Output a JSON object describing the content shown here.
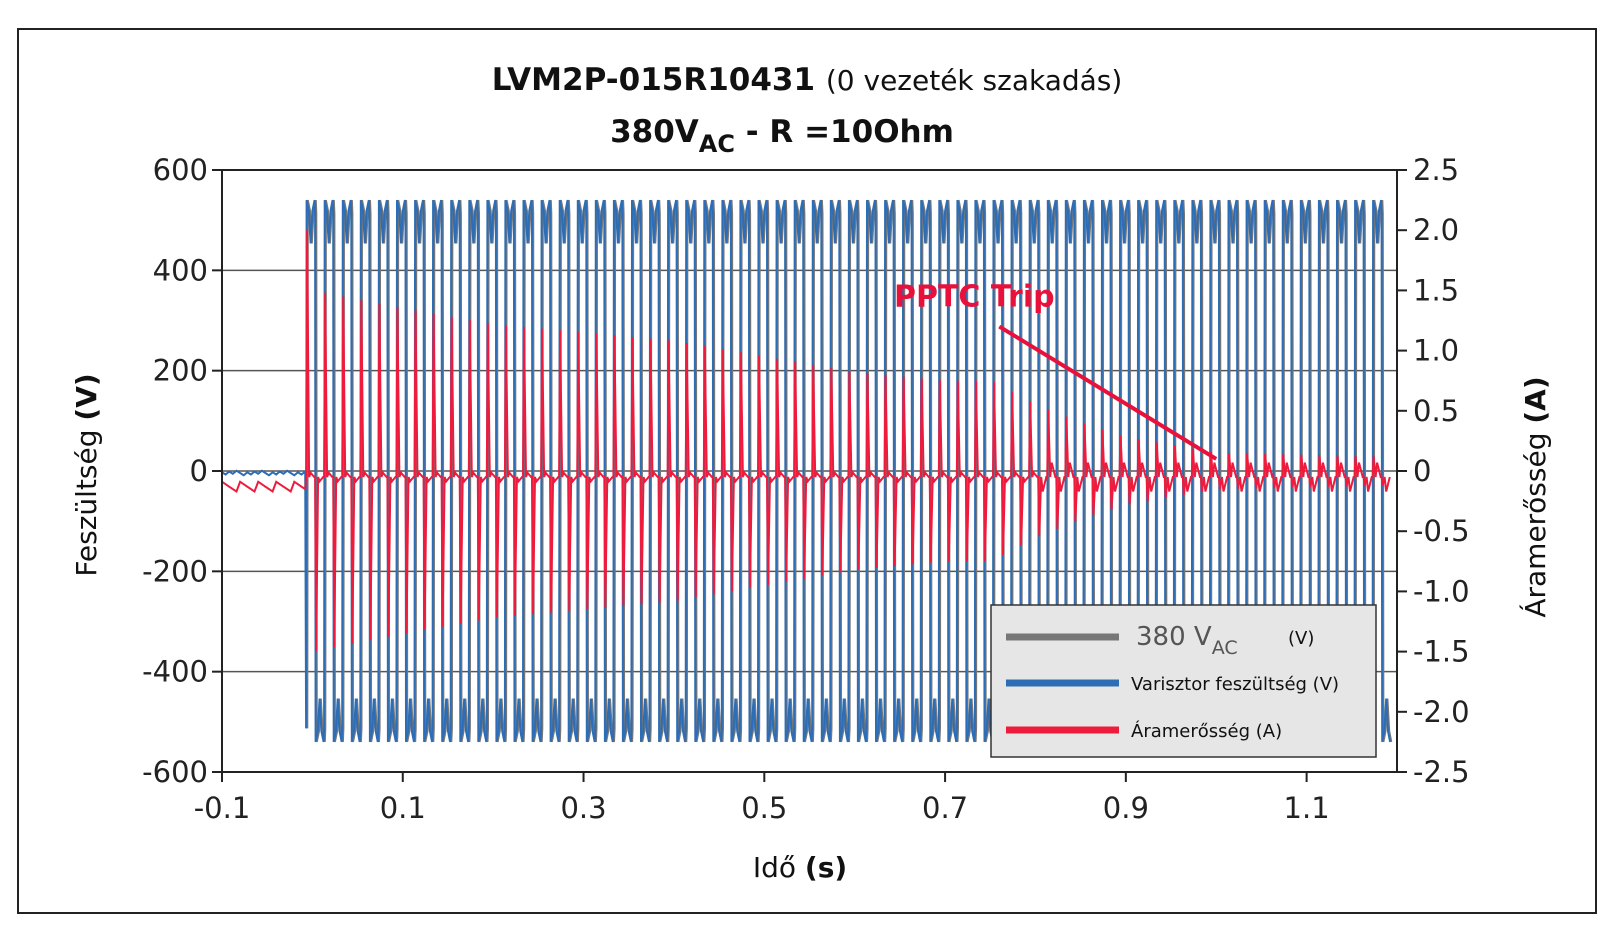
{
  "chart_data": {
    "type": "line",
    "title": "LVM2P-015R10431",
    "title_suffix": "(0 vezeték szakadás)",
    "subtitle": {
      "prefix": "380V",
      "subscript": "AC",
      "suffix": " - R =10Ohm"
    },
    "xlabel": {
      "text": "Idő ",
      "bold_part": "(s)"
    },
    "ylabel_left": {
      "text": "Feszültség ",
      "bold_part": "(V)"
    },
    "ylabel_right": {
      "text": "Áramerősség ",
      "bold_part": "(A)"
    },
    "xlim": [
      -0.1,
      1.2
    ],
    "ylim_left": [
      -600,
      600
    ],
    "ylim_right": [
      -2.5,
      2.5
    ],
    "x_ticks": [
      "-0.1",
      "0.1",
      "0.3",
      "0.5",
      "0.7",
      "0.9",
      "1.1"
    ],
    "x_tick_values": [
      -0.1,
      0.1,
      0.3,
      0.5,
      0.7,
      0.9,
      1.1
    ],
    "y_ticks_left": [
      "600",
      "400",
      "200",
      "0",
      "-200",
      "-400",
      "-600"
    ],
    "y_tick_values_left": [
      600,
      400,
      200,
      0,
      -200,
      -400,
      -600
    ],
    "y_ticks_right": [
      "2.5",
      "2.0",
      "1.5",
      "1.0",
      "0.5",
      "0",
      "-0.5",
      "-1.0",
      "-1.5",
      "-2.0",
      "-2.5"
    ],
    "y_tick_values_right": [
      2.5,
      2.0,
      1.5,
      1.0,
      0.5,
      0,
      -0.5,
      -1.0,
      -1.5,
      -2.0,
      -2.5
    ],
    "grid": "horizontal",
    "legend_position": "bottom-right",
    "series": [
      {
        "name": "380 V",
        "name_subscript": "AC",
        "unit": "(V)",
        "color": "#777777",
        "axis": "left",
        "shape": "square-ish waveform, 50 Hz",
        "amplitude": 540,
        "frequency_hz": 50,
        "start_time": -0.007
      },
      {
        "name": "Varisztor feszültség (V)",
        "color": "#2d6db5",
        "axis": "left",
        "shape": "square-ish waveform, 50 Hz",
        "amplitude": 540,
        "frequency_hz": 50,
        "start_time": -0.007,
        "pre_start_level": 5
      },
      {
        "name": "Áramerősség (A)",
        "color": "#ee1b3d",
        "axis": "right",
        "shape": "spikes at each half-cycle transition",
        "peak_envelope": [
          {
            "x": -0.007,
            "y": 2.0
          },
          {
            "x": 0.0,
            "y": 1.5
          },
          {
            "x": 0.1,
            "y": 1.35
          },
          {
            "x": 0.2,
            "y": 1.22
          },
          {
            "x": 0.3,
            "y": 1.15
          },
          {
            "x": 0.4,
            "y": 1.08
          },
          {
            "x": 0.5,
            "y": 0.95
          },
          {
            "x": 0.6,
            "y": 0.82
          },
          {
            "x": 0.7,
            "y": 0.75
          },
          {
            "x": 0.75,
            "y": 0.75
          },
          {
            "x": 0.8,
            "y": 0.55
          },
          {
            "x": 0.85,
            "y": 0.4
          },
          {
            "x": 0.9,
            "y": 0.28
          },
          {
            "x": 1.0,
            "y": 0.15
          },
          {
            "x": 1.19,
            "y": 0.12
          }
        ],
        "pre_start_level": -0.05
      }
    ],
    "annotation": {
      "text": "PPTC Trip",
      "x": 0.76,
      "y": 1.2,
      "arrow_to": {
        "x": 1.0,
        "y": 0.1
      }
    }
  }
}
